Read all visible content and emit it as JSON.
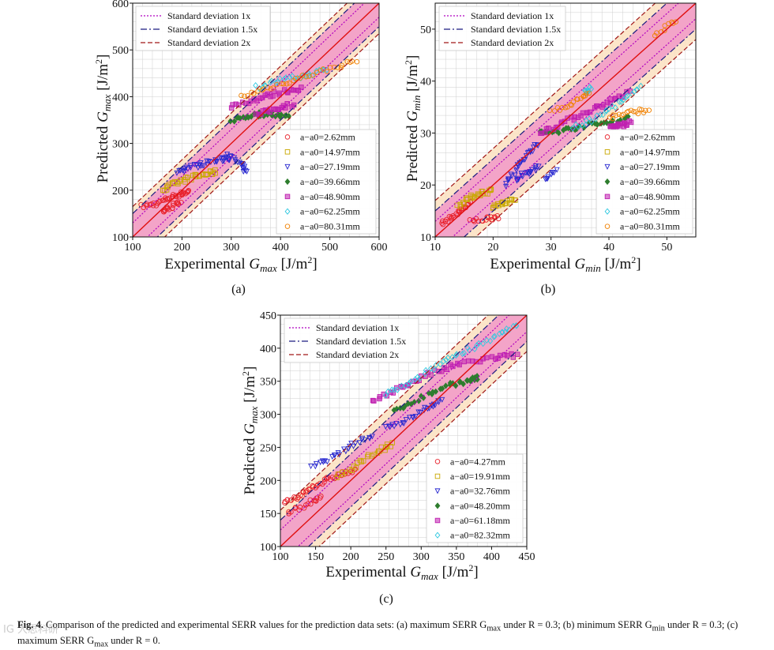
{
  "chart_data": [
    {
      "id": "a",
      "type": "scatter",
      "panel_label": "(a)",
      "xlabel": "Experimental G_max [J/m^2]",
      "ylabel": "Predicted G_max [J/m^2]",
      "xlim": [
        100,
        600
      ],
      "ylim": [
        100,
        600
      ],
      "xticks": [
        100,
        200,
        300,
        400,
        500,
        600
      ],
      "yticks": [
        100,
        200,
        300,
        400,
        500,
        600
      ],
      "bands": {
        "sd1": 30,
        "sd15": 50,
        "sd2": 65
      },
      "legend_lines": [
        "Standard deviation 1x",
        "Standard deviation 1.5x",
        "Standard deviation 2x"
      ],
      "series": [
        {
          "name": "a−a0=2.62mm",
          "marker": "circle",
          "color": "#e8202a",
          "segments": [
            [
              [
                120,
                165
              ],
              [
                150,
                172
              ],
              [
                175,
                185
              ],
              [
                200,
                193
              ],
              [
                215,
                198
              ]
            ],
            [
              [
                160,
                155
              ],
              [
                180,
                165
              ],
              [
                200,
                178
              ]
            ]
          ]
        },
        {
          "name": "a−a0=14.97mm",
          "marker": "square",
          "color": "#c8a800",
          "segments": [
            [
              [
                160,
                200
              ],
              [
                190,
                215
              ],
              [
                220,
                228
              ],
              [
                250,
                235
              ],
              [
                270,
                240
              ]
            ]
          ]
        },
        {
          "name": "a−a0=27.19mm",
          "marker": "triangle",
          "color": "#2828d0",
          "segments": [
            [
              [
                190,
                240
              ],
              [
                220,
                250
              ],
              [
                250,
                258
              ],
              [
                280,
                265
              ],
              [
                300,
                270
              ]
            ],
            [
              [
                290,
                275
              ],
              [
                320,
                255
              ],
              [
                330,
                235
              ]
            ]
          ]
        },
        {
          "name": "a−a0=39.66mm",
          "marker": "diamond",
          "color": "#2e7d2e",
          "segments": [
            [
              [
                300,
                350
              ],
              [
                340,
                360
              ],
              [
                380,
                365
              ],
              [
                420,
                355
              ]
            ]
          ]
        },
        {
          "name": "a−a0=48.90mm",
          "marker": "xsquare",
          "color": "#c020b0",
          "segments": [
            [
              [
                300,
                380
              ],
              [
                350,
                395
              ],
              [
                400,
                410
              ],
              [
                450,
                420
              ]
            ],
            [
              [
                350,
                360
              ],
              [
                390,
                375
              ],
              [
                430,
                385
              ]
            ]
          ]
        },
        {
          "name": "a−a0=62.25mm",
          "marker": "diamond",
          "color": "#30c8e0",
          "segments": [
            [
              [
                350,
                420
              ],
              [
                400,
                435
              ],
              [
                450,
                445
              ],
              [
                500,
                460
              ]
            ]
          ]
        },
        {
          "name": "a−a0=80.31mm",
          "marker": "circle",
          "color": "#f08000",
          "segments": [
            [
              [
                320,
                400
              ],
              [
                380,
                420
              ],
              [
                440,
                440
              ],
              [
                500,
                460
              ],
              [
                560,
                480
              ]
            ]
          ]
        }
      ]
    },
    {
      "id": "b",
      "type": "scatter",
      "panel_label": "(b)",
      "xlabel": "Experimental G_min [J/m^2]",
      "ylabel": "Predicted G_min [J/m^2]",
      "xlim": [
        10,
        55
      ],
      "ylim": [
        10,
        55
      ],
      "xticks": [
        10,
        20,
        30,
        40,
        50
      ],
      "yticks": [
        10,
        20,
        30,
        40,
        50
      ],
      "bands": {
        "sd1": 3,
        "sd15": 5,
        "sd2": 7
      },
      "legend_lines": [
        "Standard deviation 1x",
        "Standard deviation 1.5x",
        "Standard deviation 2x"
      ],
      "series": [
        {
          "name": "a−a0=2.62mm",
          "marker": "circle",
          "color": "#e8202a",
          "segments": [
            [
              [
                11,
                12.5
              ],
              [
                13,
                14
              ],
              [
                15,
                15.5
              ],
              [
                16,
                16.5
              ]
            ],
            [
              [
                16,
                13
              ],
              [
                19,
                13.5
              ],
              [
                21,
                14
              ]
            ]
          ]
        },
        {
          "name": "a−a0=14.97mm",
          "marker": "square",
          "color": "#c8a800",
          "segments": [
            [
              [
                14,
                16
              ],
              [
                16,
                17.5
              ],
              [
                18,
                18.5
              ],
              [
                20,
                19
              ]
            ],
            [
              [
                20,
                16
              ],
              [
                22,
                16.5
              ],
              [
                24,
                17
              ]
            ]
          ]
        },
        {
          "name": "a−a0=27.19mm",
          "marker": "triangle",
          "color": "#2828d0",
          "segments": [
            [
              [
                22,
                20
              ],
              [
                24,
                23
              ],
              [
                26,
                26
              ],
              [
                28,
                28
              ]
            ],
            [
              [
                24,
                21
              ],
              [
                26,
                22.5
              ],
              [
                28,
                23.5
              ]
            ],
            [
              [
                29,
                21
              ],
              [
                31,
                23
              ]
            ]
          ]
        },
        {
          "name": "a−a0=39.66mm",
          "marker": "diamond",
          "color": "#2e7d2e",
          "segments": [
            [
              [
                28,
                30
              ],
              [
                32,
                30.5
              ],
              [
                36,
                31.5
              ],
              [
                40,
                32
              ],
              [
                44,
                33
              ]
            ]
          ]
        },
        {
          "name": "a−a0=48.90mm",
          "marker": "xsquare",
          "color": "#c020b0",
          "segments": [
            [
              [
                28,
                30
              ],
              [
                32,
                32
              ],
              [
                36,
                34
              ],
              [
                40,
                36
              ],
              [
                44,
                38
              ]
            ],
            [
              [
                40,
                31
              ],
              [
                42,
                31.5
              ],
              [
                44,
                32
              ]
            ]
          ]
        },
        {
          "name": "a−a0=62.25mm",
          "marker": "diamond",
          "color": "#30c8e0",
          "segments": [
            [
              [
                34,
                31
              ],
              [
                38,
                33
              ],
              [
                42,
                36
              ],
              [
                46,
                39
              ]
            ],
            [
              [
                36,
                38
              ],
              [
                37,
                39
              ]
            ]
          ]
        },
        {
          "name": "a−a0=80.31mm",
          "marker": "circle",
          "color": "#f08000",
          "segments": [
            [
              [
                30,
                34
              ],
              [
                34,
                36
              ],
              [
                37,
                38
              ]
            ],
            [
              [
                40,
                33
              ],
              [
                44,
                34
              ],
              [
                47,
                34.5
              ]
            ],
            [
              [
                48,
                49
              ],
              [
                52,
                52
              ]
            ]
          ]
        }
      ]
    },
    {
      "id": "c",
      "type": "scatter",
      "panel_label": "(c)",
      "xlabel": "Experimental G_max [J/m^2]",
      "ylabel": "Predicted G_max [J/m^2]",
      "xlim": [
        100,
        450
      ],
      "ylim": [
        100,
        450
      ],
      "xticks": [
        100,
        150,
        200,
        250,
        300,
        350,
        400,
        450
      ],
      "yticks": [
        100,
        150,
        200,
        250,
        300,
        350,
        400,
        450
      ],
      "bands": {
        "sd1": 25,
        "sd15": 40,
        "sd2": 55
      },
      "legend_lines": [
        "Standard deviation 1x",
        "Standard deviation 1.5x",
        "Standard deviation 2x"
      ],
      "series": [
        {
          "name": "a−a0=4.27mm",
          "marker": "circle",
          "color": "#e8202a",
          "segments": [
            [
              [
                105,
                165
              ],
              [
                125,
                175
              ],
              [
                145,
                190
              ],
              [
                165,
                200
              ],
              [
                185,
                210
              ],
              [
                210,
                215
              ]
            ],
            [
              [
                110,
                150
              ],
              [
                140,
                165
              ],
              [
                160,
                175
              ]
            ]
          ]
        },
        {
          "name": "a−a0=19.91mm",
          "marker": "square",
          "color": "#c8a800",
          "segments": [
            [
              [
                180,
                205
              ],
              [
                210,
                225
              ],
              [
                240,
                245
              ],
              [
                260,
                255
              ]
            ]
          ]
        },
        {
          "name": "a−a0=32.76mm",
          "marker": "triangle",
          "color": "#2828d0",
          "segments": [
            [
              [
                145,
                220
              ],
              [
                175,
                235
              ],
              [
                205,
                255
              ],
              [
                235,
                270
              ]
            ],
            [
              [
                250,
                280
              ],
              [
                280,
                290
              ],
              [
                310,
                310
              ],
              [
                330,
                320
              ]
            ]
          ]
        },
        {
          "name": "a−a0=48.20mm",
          "marker": "diamond",
          "color": "#2e7d2e",
          "segments": [
            [
              [
                260,
                305
              ],
              [
                300,
                325
              ],
              [
                340,
                345
              ],
              [
                370,
                350
              ],
              [
                380,
                355
              ]
            ]
          ]
        },
        {
          "name": "a−a0=61.18mm",
          "marker": "xsquare",
          "color": "#c020b0",
          "segments": [
            [
              [
                230,
                320
              ],
              [
                270,
                340
              ],
              [
                310,
                360
              ],
              [
                350,
                375
              ],
              [
                400,
                385
              ],
              [
                440,
                390
              ]
            ]
          ]
        },
        {
          "name": "a−a0=82.32mm",
          "marker": "diamond",
          "color": "#30c8e0",
          "segments": [
            [
              [
                250,
                330
              ],
              [
                290,
                350
              ],
              [
                330,
                380
              ],
              [
                370,
                400
              ],
              [
                410,
                420
              ],
              [
                440,
                435
              ]
            ]
          ]
        }
      ]
    }
  ],
  "caption": {
    "label": "Fig. 4.",
    "text": "Comparison of the predicted and experimental SERR values for the prediction data sets: (a) maximum SERR G",
    "part2": " under R = 0.3; (b) minimum SERR G",
    "part3": " under R = 0.3; (c) maximum SERR G",
    "part4": " under R = 0.",
    "sub_max": "max",
    "sub_min": "min"
  },
  "watermark": "IG 大思科研",
  "colors": {
    "band_inner": "#f2a0c8",
    "band_outer": "#fbe0c0",
    "diag": "#e01010",
    "sd1": "#b000c0",
    "sd15": "#1a1a80",
    "sd2": "#a01818"
  }
}
